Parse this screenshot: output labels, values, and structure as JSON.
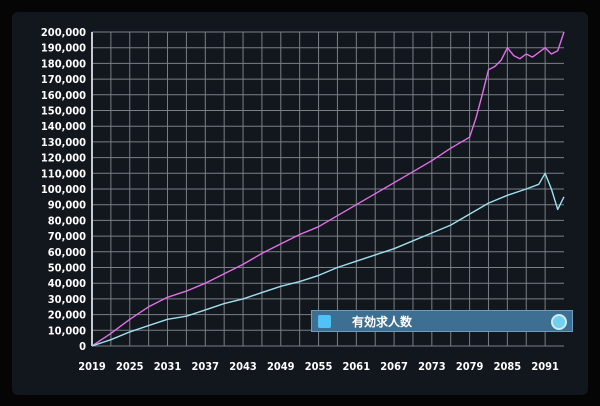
{
  "colors": {
    "background": "#12161d",
    "grid": "#7a7f86",
    "series_pink": "#e070e8",
    "series_cyan": "#9ee0ee",
    "legend_bg": "#3d6f92",
    "legend_swatch": "#4fc3f7"
  },
  "legend": {
    "label": "有効求人数",
    "swatch_icon": "square-swatch",
    "toggle_icon": "radio-toggle-icon"
  },
  "chart_data": {
    "type": "line",
    "title": "",
    "xlabel": "",
    "ylabel": "",
    "xlim": [
      2019,
      2094
    ],
    "ylim": [
      0,
      200000
    ],
    "x_ticks": [
      "2019",
      "2025",
      "2031",
      "2037",
      "2043",
      "2049",
      "2055",
      "2061",
      "2067",
      "2073",
      "2079",
      "2085",
      "2091"
    ],
    "y_ticks": [
      "0",
      "10,000",
      "20,000",
      "30,000",
      "40,000",
      "50,000",
      "60,000",
      "70,000",
      "80,000",
      "90,000",
      "100,000",
      "110,000",
      "120,000",
      "130,000",
      "140,000",
      "150,000",
      "160,000",
      "170,000",
      "180,000",
      "190,000",
      "200,000"
    ],
    "grid": true,
    "legend_position": "bottom-right",
    "series": [
      {
        "name": "",
        "x": [
          2019,
          2022,
          2025,
          2028,
          2031,
          2034,
          2037,
          2040,
          2043,
          2046,
          2049,
          2052,
          2055,
          2058,
          2061,
          2064,
          2067,
          2070,
          2073,
          2076,
          2079,
          2080,
          2081,
          2082,
          2083,
          2084,
          2085,
          2086,
          2087,
          2088,
          2089,
          2090,
          2091,
          2092,
          2093,
          2094
        ],
        "y": [
          0,
          8000,
          17000,
          25000,
          31000,
          35000,
          40000,
          46000,
          52000,
          59000,
          65000,
          71000,
          76000,
          83000,
          90000,
          97000,
          104000,
          111000,
          118000,
          126000,
          133000,
          145000,
          160000,
          176000,
          178000,
          182000,
          190000,
          185000,
          183000,
          186000,
          184000,
          187000,
          190000,
          186000,
          188000,
          200000
        ]
      },
      {
        "name": "有効求人数",
        "x": [
          2019,
          2022,
          2025,
          2028,
          2031,
          2034,
          2037,
          2040,
          2043,
          2046,
          2049,
          2052,
          2055,
          2058,
          2061,
          2064,
          2067,
          2070,
          2073,
          2076,
          2079,
          2082,
          2085,
          2088,
          2090,
          2091,
          2092,
          2093,
          2094
        ],
        "y": [
          0,
          4000,
          9000,
          13000,
          17000,
          19000,
          23000,
          27000,
          30000,
          34000,
          38000,
          41000,
          45000,
          50000,
          54000,
          58000,
          62000,
          67000,
          72000,
          77000,
          84000,
          91000,
          96000,
          100000,
          103000,
          110000,
          100000,
          87000,
          95000
        ]
      }
    ]
  }
}
